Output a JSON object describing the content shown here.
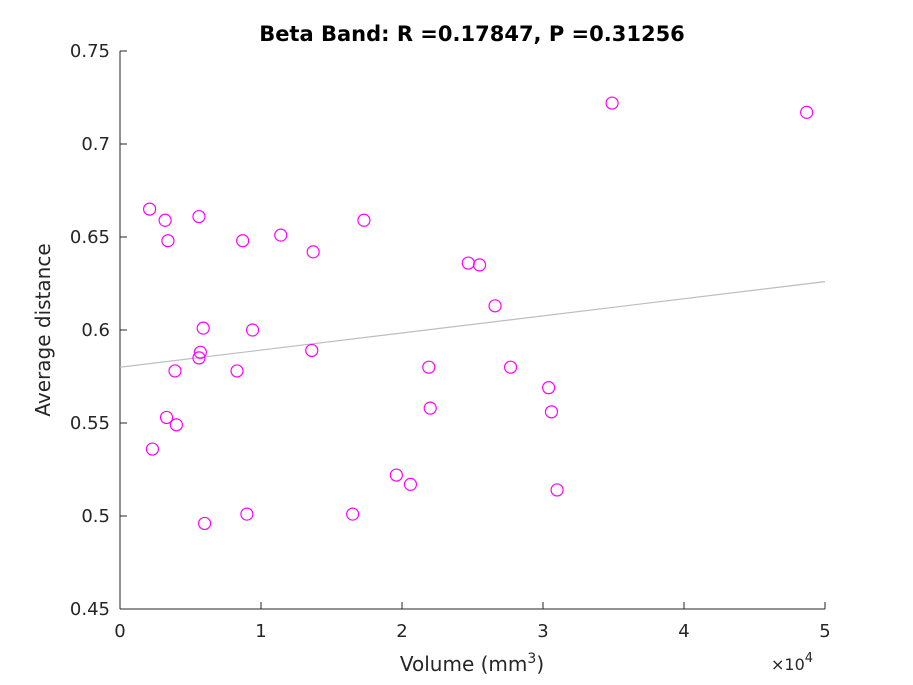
{
  "chart_data": {
    "type": "scatter",
    "title": "Beta Band: R =0.17847, P =0.31256",
    "xlabel": "Volume (mm",
    "xlabel_sup": "3",
    "xlabel_close": ")",
    "ylabel": "Average distance",
    "x_exponent_label": "×10",
    "x_exponent_power": "4",
    "xlim": [
      0,
      5
    ],
    "ylim": [
      0.45,
      0.75
    ],
    "xticks": [
      0,
      1,
      2,
      3,
      4,
      5
    ],
    "xtick_labels": [
      "0",
      "1",
      "2",
      "3",
      "4",
      "5"
    ],
    "yticks": [
      0.45,
      0.5,
      0.55,
      0.6,
      0.65,
      0.7,
      0.75
    ],
    "ytick_labels": [
      "0.45",
      "0.5",
      "0.55",
      "0.6",
      "0.65",
      "0.7",
      "0.75"
    ],
    "marker_color": "#ff00ff",
    "fit_line_color": "#bdbdbd",
    "axis_color": "#262626",
    "points": [
      {
        "x": 0.21,
        "y": 0.665
      },
      {
        "x": 0.32,
        "y": 0.659
      },
      {
        "x": 0.34,
        "y": 0.648
      },
      {
        "x": 0.56,
        "y": 0.661
      },
      {
        "x": 0.87,
        "y": 0.648
      },
      {
        "x": 1.14,
        "y": 0.651
      },
      {
        "x": 1.37,
        "y": 0.642
      },
      {
        "x": 1.73,
        "y": 0.659
      },
      {
        "x": 3.49,
        "y": 0.722
      },
      {
        "x": 4.87,
        "y": 0.717
      },
      {
        "x": 2.47,
        "y": 0.636
      },
      {
        "x": 2.55,
        "y": 0.635
      },
      {
        "x": 2.66,
        "y": 0.613
      },
      {
        "x": 0.59,
        "y": 0.601
      },
      {
        "x": 0.94,
        "y": 0.6
      },
      {
        "x": 0.57,
        "y": 0.588
      },
      {
        "x": 0.56,
        "y": 0.585
      },
      {
        "x": 1.36,
        "y": 0.589
      },
      {
        "x": 0.39,
        "y": 0.578
      },
      {
        "x": 0.83,
        "y": 0.578
      },
      {
        "x": 2.19,
        "y": 0.58
      },
      {
        "x": 2.77,
        "y": 0.58
      },
      {
        "x": 3.04,
        "y": 0.569
      },
      {
        "x": 2.2,
        "y": 0.558
      },
      {
        "x": 3.06,
        "y": 0.556
      },
      {
        "x": 0.33,
        "y": 0.553
      },
      {
        "x": 0.4,
        "y": 0.549
      },
      {
        "x": 0.23,
        "y": 0.536
      },
      {
        "x": 1.96,
        "y": 0.522
      },
      {
        "x": 2.06,
        "y": 0.517
      },
      {
        "x": 3.1,
        "y": 0.514
      },
      {
        "x": 0.9,
        "y": 0.501
      },
      {
        "x": 1.65,
        "y": 0.501
      },
      {
        "x": 0.6,
        "y": 0.496
      }
    ],
    "fit_line": {
      "x": [
        0,
        5
      ],
      "y": [
        0.58,
        0.626
      ]
    },
    "grid": false,
    "legend": "none"
  }
}
